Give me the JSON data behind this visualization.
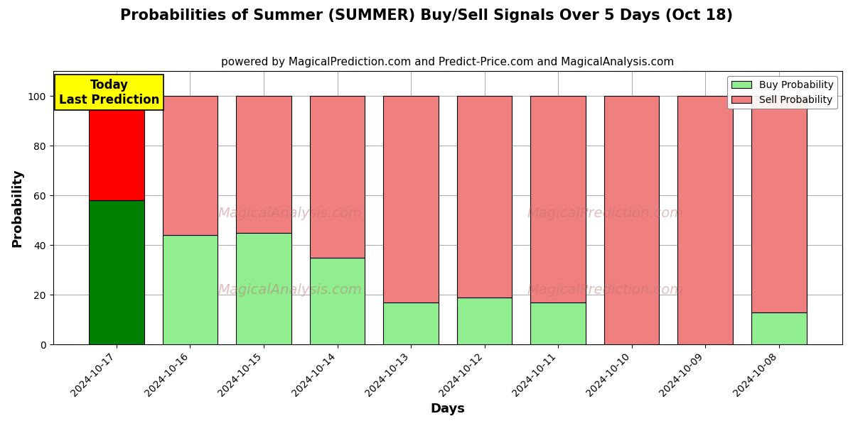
{
  "title": "Probabilities of Summer (SUMMER) Buy/Sell Signals Over 5 Days (Oct 18)",
  "subtitle": "powered by MagicalPrediction.com and Predict-Price.com and MagicalAnalysis.com",
  "xlabel": "Days",
  "ylabel": "Probability",
  "watermark_line1": "MagicalAnalysis.com",
  "watermark_line2": "MagicalPrediction.com",
  "categories": [
    "2024-10-17",
    "2024-10-16",
    "2024-10-15",
    "2024-10-14",
    "2024-10-13",
    "2024-10-12",
    "2024-10-11",
    "2024-10-10",
    "2024-10-09",
    "2024-10-08"
  ],
  "buy_values": [
    58,
    44,
    45,
    35,
    17,
    19,
    17,
    0,
    0,
    13
  ],
  "sell_values": [
    42,
    56,
    55,
    65,
    83,
    81,
    83,
    100,
    100,
    87
  ],
  "today_bar_buy_color": "#008000",
  "today_bar_sell_color": "#FF0000",
  "other_bar_buy_color": "#90EE90",
  "other_bar_sell_color": "#F08080",
  "bar_edge_color": "#000000",
  "ylim_max": 110,
  "yticks": [
    0,
    20,
    40,
    60,
    80,
    100
  ],
  "dashed_line_y": 110,
  "legend_buy_color": "#90EE90",
  "legend_sell_color": "#F08080",
  "today_annotation_text": "Today\nLast Prediction",
  "today_annotation_bg": "#FFFF00",
  "background_color": "#FFFFFF",
  "grid_color": "#AAAAAA",
  "title_fontsize": 15,
  "subtitle_fontsize": 11,
  "axis_label_fontsize": 13,
  "tick_fontsize": 10,
  "bar_width": 0.75
}
